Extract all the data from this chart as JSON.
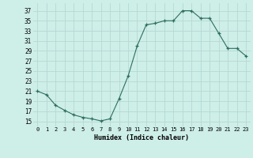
{
  "x": [
    0,
    1,
    2,
    3,
    4,
    5,
    6,
    7,
    8,
    9,
    10,
    11,
    12,
    13,
    14,
    15,
    16,
    17,
    18,
    19,
    20,
    21,
    22,
    23
  ],
  "y": [
    21,
    20.3,
    18.2,
    17.2,
    16.3,
    15.8,
    15.5,
    15.1,
    15.5,
    19.5,
    24,
    30,
    34.2,
    34.5,
    35,
    35,
    37,
    37,
    35.5,
    35.5,
    32.5,
    29.5,
    29.5,
    28
  ],
  "line_color": "#2d6e5e",
  "marker": "+",
  "bg_color": "#ceeee8",
  "grid_color": "#b5d9d2",
  "xlabel": "Humidex (Indice chaleur)",
  "ylabel_ticks": [
    15,
    17,
    19,
    21,
    23,
    25,
    27,
    29,
    31,
    33,
    35,
    37
  ],
  "ylim": [
    14.0,
    38.5
  ],
  "xlim": [
    -0.5,
    23.5
  ]
}
